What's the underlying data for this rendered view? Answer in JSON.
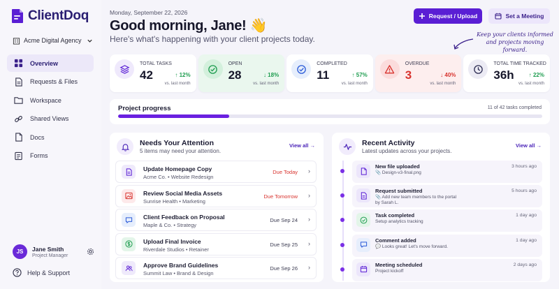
{
  "app": {
    "name": "ClientDoq"
  },
  "colors": {
    "primary": "#5a1ed4",
    "green": "#1f9d50",
    "red": "#d8332e",
    "background": "#f5f4fa"
  },
  "sidebar": {
    "org_name": "Acme Digital Agency",
    "items": [
      {
        "label": "Overview",
        "icon": "grid-icon",
        "active": true
      },
      {
        "label": "Requests & Files",
        "icon": "file-icon",
        "active": false
      },
      {
        "label": "Workspace",
        "icon": "folder-icon",
        "active": false
      },
      {
        "label": "Shared Views",
        "icon": "link-icon",
        "active": false
      },
      {
        "label": "Docs",
        "icon": "doc-icon",
        "active": false
      },
      {
        "label": "Forms",
        "icon": "form-icon",
        "active": false
      }
    ],
    "user": {
      "initials": "JS",
      "name": "Jane Smith",
      "role": "Project Manager"
    },
    "help_label": "Help & Support"
  },
  "header": {
    "date": "Monday, September 22, 2026",
    "greeting": "Good morning, Jane! 👋",
    "subtitle": "Here's what's happening with your client projects today.",
    "primary_button": "Request / Upload",
    "secondary_button": "Set a Meeting",
    "annotation": "Keep your clients informed and projects moving forward."
  },
  "stats": [
    {
      "label": "Total Tasks",
      "value": "42",
      "change": "↑ 12%",
      "note": "vs. last month",
      "icon": "layers-icon",
      "trend": "up"
    },
    {
      "label": "Open",
      "value": "28",
      "change": "↓ 18%",
      "note": "vs. last month",
      "icon": "check-circle-icon",
      "trend": "down-good"
    },
    {
      "label": "Completed",
      "value": "11",
      "change": "↑ 57%",
      "note": "vs. last month",
      "icon": "check-circle-icon",
      "trend": "up"
    },
    {
      "label": "Overdue",
      "value": "3",
      "change": "↓ 40%",
      "note": "vs. last month",
      "icon": "warning-icon",
      "trend": "down-red"
    },
    {
      "label": "Total Time Tracked",
      "value": "36h",
      "change": "↑ 22%",
      "note": "vs. last month",
      "icon": "clock-icon",
      "trend": "up"
    }
  ],
  "progress": {
    "title": "Project progress",
    "text": "11 of 42 tasks completed",
    "fraction": 0.262
  },
  "attention": {
    "title": "Needs Your Attention",
    "subtitle": "5 items may need your attention.",
    "view_all": "View all →",
    "items": [
      {
        "title": "Update Homepage Copy",
        "meta": "Acme Co. • Website Redesign",
        "due": "Due Today",
        "alert": true,
        "icon": "doc-icon"
      },
      {
        "title": "Review Social Media Assets",
        "meta": "Sunrise Health • Marketing",
        "due": "Due Tomorrow",
        "alert": true,
        "icon": "image-icon"
      },
      {
        "title": "Client Feedback on Proposal",
        "meta": "Maple & Co. • Strategy",
        "due": "Due Sep 24",
        "alert": false,
        "icon": "chat-icon"
      },
      {
        "title": "Upload Final Invoice",
        "meta": "Riverdale Studios • Retainer",
        "due": "Due Sep 25",
        "alert": false,
        "icon": "dollar-icon"
      },
      {
        "title": "Approve Brand Guidelines",
        "meta": "Summit Law • Brand & Design",
        "due": "Due Sep 26",
        "alert": false,
        "icon": "users-icon"
      }
    ]
  },
  "activity": {
    "title": "Recent Activity",
    "subtitle": "Latest updates across your projects.",
    "view_all": "View all →",
    "items": [
      {
        "title": "New file uploaded",
        "detail": "📎 Design-v3-final.png",
        "time": "3 hours ago",
        "icon": "file-icon"
      },
      {
        "title": "Request submitted",
        "detail": "📎 Add new team members to the portal\nby Sarah L.",
        "time": "5 hours ago",
        "icon": "doc-icon"
      },
      {
        "title": "Task completed",
        "detail": "Setup analytics tracking",
        "time": "1 day ago",
        "icon": "check-circle-icon"
      },
      {
        "title": "Comment added",
        "detail": "💬 Looks great! Let's move forward.",
        "time": "1 day ago",
        "icon": "chat-icon"
      },
      {
        "title": "Meeting scheduled",
        "detail": "Project kickoff",
        "time": "2 days ago",
        "icon": "calendar-icon"
      }
    ]
  }
}
